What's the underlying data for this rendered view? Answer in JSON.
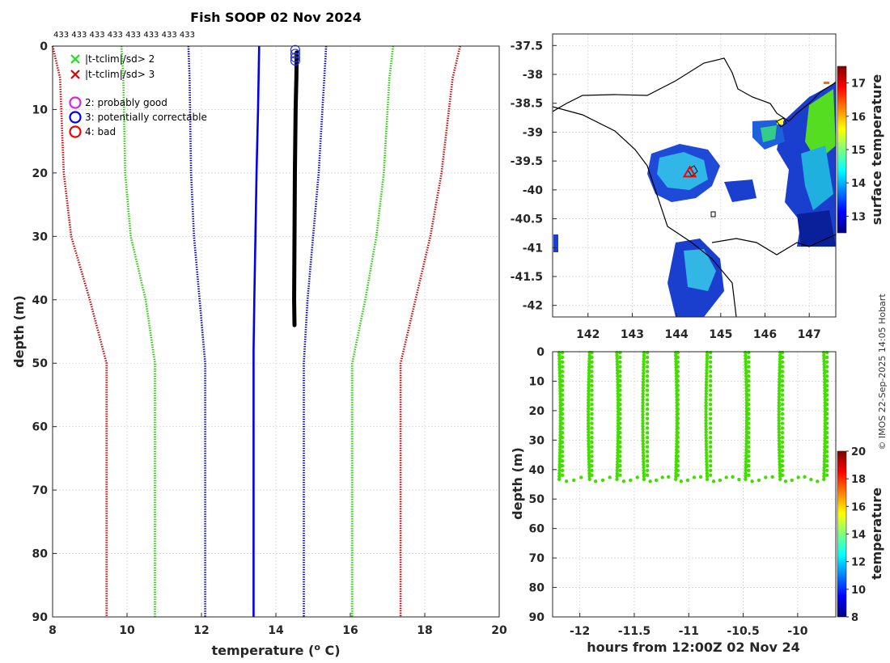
{
  "chart_data": [
    {
      "id": "profile",
      "type": "line",
      "title": "Fish SOOP 02 Nov 2024",
      "xlabel_main": "temperature (",
      "xlabel_sup": "o",
      "xlabel_end": " C)",
      "ylabel": "depth (m)",
      "xlim": [
        8,
        20
      ],
      "ylim": [
        0,
        90
      ],
      "xticks": [
        8,
        10,
        12,
        14,
        16,
        18,
        20
      ],
      "yticks": [
        0,
        10,
        20,
        30,
        40,
        50,
        60,
        70,
        80,
        90
      ],
      "counts_label": "433 433 433 433 433 433 433 433",
      "legend": [
        {
          "label": "|t-tclim|/sd> 2",
          "marker": "x",
          "color": "#22dd22"
        },
        {
          "label": "|t-tclim|/sd> 3",
          "marker": "x",
          "color": "#dd0000"
        },
        {
          "label": "2: probably good",
          "marker": "o",
          "color": "#dd22dd"
        },
        {
          "label": "3: potentially correctable",
          "marker": "o",
          "color": "#0000ee"
        },
        {
          "label": "4: bad",
          "marker": "o",
          "color": "#ee0000"
        }
      ],
      "series": [
        {
          "name": "clim -3sd",
          "color": "#cc0000",
          "style": "dotted",
          "depth": [
            0,
            5,
            20,
            30,
            40,
            50,
            90
          ],
          "temp": [
            8.0,
            8.2,
            8.3,
            8.5,
            9.0,
            9.45,
            9.45
          ]
        },
        {
          "name": "clim -2sd",
          "color": "#22cc00",
          "style": "dotted",
          "depth": [
            0,
            5,
            20,
            30,
            40,
            50,
            90
          ],
          "temp": [
            9.85,
            9.9,
            9.95,
            10.1,
            10.5,
            10.75,
            10.75
          ]
        },
        {
          "name": "clim -1sd",
          "color": "#0000cc",
          "style": "dotted",
          "depth": [
            0,
            5,
            20,
            30,
            40,
            50,
            90
          ],
          "temp": [
            11.65,
            11.68,
            11.72,
            11.8,
            11.95,
            12.1,
            12.1
          ]
        },
        {
          "name": "clim mean",
          "color": "#0000ee",
          "style": "solid",
          "depth": [
            0,
            10,
            20,
            30,
            40,
            48,
            90
          ],
          "temp": [
            13.55,
            13.52,
            13.48,
            13.45,
            13.42,
            13.4,
            13.4
          ]
        },
        {
          "name": "clim +1sd",
          "color": "#0000cc",
          "style": "dotted",
          "depth": [
            0,
            5,
            20,
            30,
            40,
            50,
            90
          ],
          "temp": [
            15.35,
            15.3,
            15.15,
            15.0,
            14.85,
            14.75,
            14.75
          ]
        },
        {
          "name": "clim +2sd",
          "color": "#22cc00",
          "style": "dotted",
          "depth": [
            0,
            5,
            20,
            30,
            40,
            50,
            90
          ],
          "temp": [
            17.15,
            17.05,
            16.9,
            16.7,
            16.4,
            16.05,
            16.05
          ]
        },
        {
          "name": "clim +3sd",
          "color": "#cc0000",
          "style": "dotted",
          "depth": [
            0,
            5,
            20,
            30,
            40,
            50,
            90
          ],
          "temp": [
            18.95,
            18.75,
            18.45,
            18.15,
            17.75,
            17.35,
            17.35
          ]
        },
        {
          "name": "profile",
          "color": "#000000",
          "style": "thick",
          "depth": [
            1,
            5,
            10,
            20,
            30,
            40,
            44
          ],
          "temp": [
            14.56,
            14.55,
            14.53,
            14.51,
            14.5,
            14.49,
            14.5
          ]
        }
      ],
      "flagged_points": {
        "temp": 14.52,
        "depth": [
          0.6,
          1.2,
          1.8,
          2.3
        ]
      }
    },
    {
      "id": "map",
      "type": "heatmap",
      "xlim": [
        141.2,
        147.6
      ],
      "ylim": [
        -42.2,
        -37.3
      ],
      "xticks": [
        142,
        143,
        144,
        145,
        146,
        147
      ],
      "yticks": [
        -37.5,
        -38,
        -38.5,
        -39,
        -39.5,
        -40,
        -40.5,
        -41,
        -41.5,
        -42
      ],
      "colorbar_label": "surface temperature",
      "colorbar_range": [
        12.5,
        17.5
      ],
      "colorbar_ticks": [
        13,
        14,
        15,
        16,
        17
      ],
      "vessel_position": {
        "lon": 144.3,
        "lat": -39.7
      }
    },
    {
      "id": "timeseries",
      "type": "scatter",
      "xlabel": "hours from 12:00Z 02 Nov 24",
      "ylabel": "depth (m)",
      "xlim": [
        -12.25,
        -9.65
      ],
      "ylim": [
        0,
        90
      ],
      "xticks": [
        -12,
        -11.5,
        -11,
        -10.5,
        -10
      ],
      "yticks": [
        0,
        10,
        20,
        30,
        40,
        50,
        60,
        70,
        80,
        90
      ],
      "colorbar_label": "temperature",
      "colorbar_range": [
        8,
        20
      ],
      "colorbar_ticks": [
        8,
        10,
        12,
        14,
        16,
        18,
        20
      ],
      "point_color": "#44dd00",
      "casts": [
        -12.19,
        -11.92,
        -11.66,
        -11.41,
        -11.13,
        -10.83,
        -10.48,
        -10.17,
        -9.76
      ]
    }
  ],
  "credit": "© IMOS 22-Sep-2025 14:05 Hobart"
}
